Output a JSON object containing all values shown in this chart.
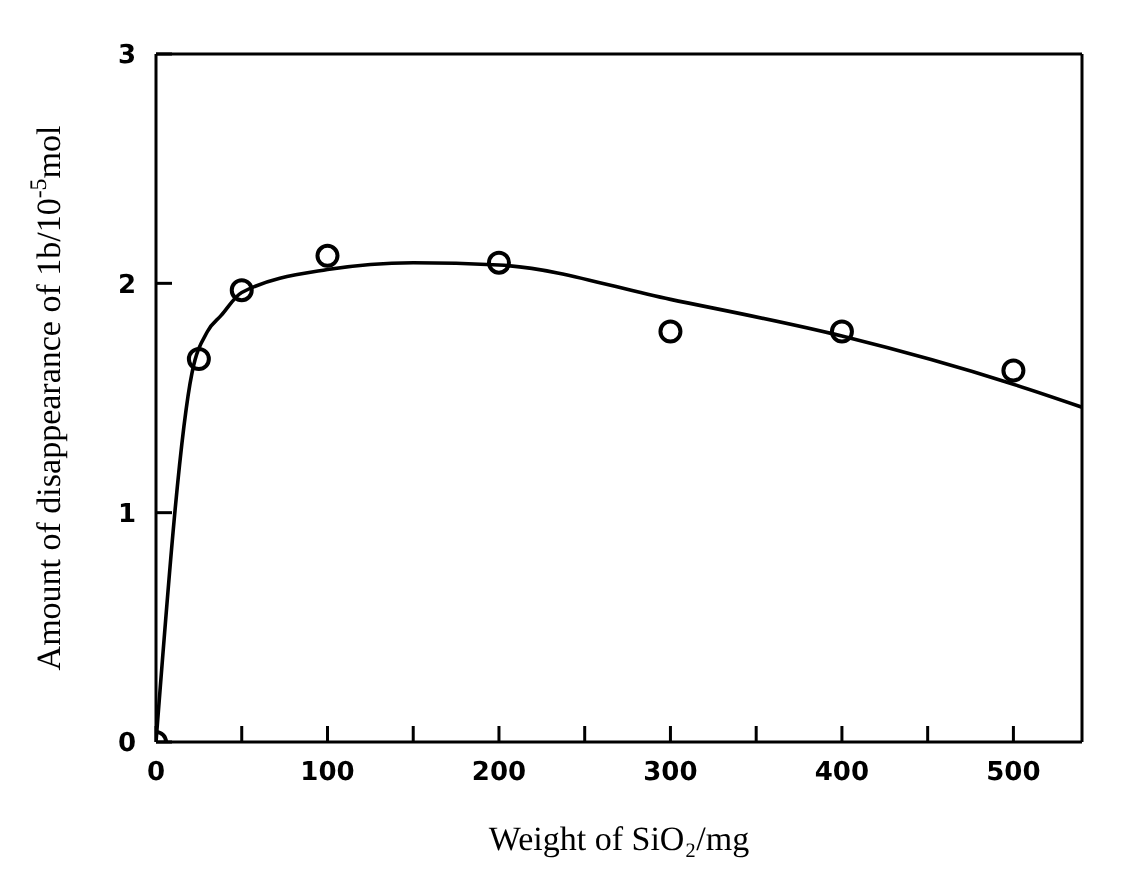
{
  "chart_data": {
    "type": "scatter",
    "xlabel": "Weight of SiO₂/mg",
    "ylabel": "Amount of disappearance of 1b/10$^{-5}$mol",
    "series": [
      {
        "color": "#000000",
        "marker": "circle",
        "x": [
          0,
          25,
          50,
          100,
          200,
          300,
          400,
          500
        ],
        "values": [
          0,
          1.67,
          1.97,
          2.12,
          2.09,
          1.79,
          1.79,
          1.62
        ]
      },
      {
        "type": "line",
        "color": "#000000",
        "marker": "none",
        "x": [
          0,
          21,
          30,
          38,
          50,
          100,
          150,
          200,
          300,
          400,
          500,
          540
        ],
        "values": [
          0,
          1.61,
          1.79,
          1.86,
          1.96,
          2.06,
          2.09,
          2.08,
          1.93,
          1.77,
          1.56,
          1.46
        ]
      }
    ],
    "xlim": [
      0,
      540
    ],
    "ylim": [
      0,
      3
    ],
    "xticks": [
      0,
      {
        "value": 50,
        "label": null
      },
      100,
      {
        "value": 150,
        "label": null
      },
      200,
      {
        "value": 250,
        "label": null
      },
      300,
      {
        "value": 350,
        "label": null
      },
      400,
      {
        "value": 450,
        "label": null
      },
      500
    ],
    "yticks": [
      0,
      1,
      2,
      3
    ]
  }
}
